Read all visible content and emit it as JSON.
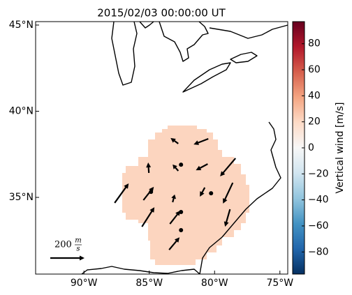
{
  "chart_data": {
    "type": "quiver-map",
    "title": "2015/02/03 00:00:00 UT",
    "xlim": [
      -93.7,
      -74.4
    ],
    "ylim": [
      30.55,
      45.2
    ],
    "xticks": [
      {
        "value": -90,
        "label": "90°W"
      },
      {
        "value": -85,
        "label": "85°W"
      },
      {
        "value": -80,
        "label": "80°W"
      },
      {
        "value": -75,
        "label": "75°W"
      }
    ],
    "yticks": [
      {
        "value": 45,
        "label": "45°N"
      },
      {
        "value": 40,
        "label": "40°N"
      },
      {
        "value": 35,
        "label": "35°N"
      }
    ],
    "field": {
      "value": 18,
      "color": "#fcd5bf"
    },
    "colorbar": {
      "label": "Vertical wind [m/s]",
      "lim": [
        -97,
        97
      ],
      "ticks": [
        80,
        60,
        40,
        20,
        0,
        {
          "value": -20,
          "label": "−20"
        },
        {
          "value": -40,
          "label": "−40"
        },
        {
          "value": -60,
          "label": "−60"
        },
        {
          "value": -80,
          "label": "−80"
        }
      ],
      "colors": [
        "#053061",
        "#2166ac",
        "#4393c3",
        "#92c5de",
        "#d1e5f0",
        "#f7f7f7",
        "#fddbc7",
        "#f4a582",
        "#d6604d",
        "#b2182b",
        "#67001f"
      ]
    },
    "arrows": [
      {
        "lon": -87.65,
        "lat": 34.68,
        "u": 82,
        "v": 114
      },
      {
        "lon": -85.56,
        "lat": 33.3,
        "u": 73,
        "v": 114
      },
      {
        "lon": -85.45,
        "lat": 34.84,
        "u": 61,
        "v": 78
      },
      {
        "lon": -85.03,
        "lat": 36.42,
        "u": -4,
        "v": 61
      },
      {
        "lon": -83.42,
        "lat": 33.46,
        "u": 61,
        "v": 78
      },
      {
        "lon": -83.48,
        "lat": 31.96,
        "u": 61,
        "v": 73
      },
      {
        "lon": -83.21,
        "lat": 34.72,
        "u": 12,
        "v": 45
      },
      {
        "lon": -82.78,
        "lat": 38.12,
        "u": -45,
        "v": 33
      },
      {
        "lon": -82.78,
        "lat": 36.54,
        "u": -33,
        "v": 37
      },
      {
        "lon": -80.48,
        "lat": 38.4,
        "u": -86,
        "v": -33
      },
      {
        "lon": -80.53,
        "lat": 36.94,
        "u": -69,
        "v": -37
      },
      {
        "lon": -78.61,
        "lat": 35.85,
        "u": -57,
        "v": -122
      },
      {
        "lon": -78.4,
        "lat": 37.27,
        "u": -90,
        "v": -106
      },
      {
        "lon": -80.75,
        "lat": 35.57,
        "u": -29,
        "v": -53
      },
      {
        "lon": -78.82,
        "lat": 34.31,
        "u": -29,
        "v": -102
      }
    ],
    "stations": [
      {
        "lon": -82.57,
        "lat": 36.9
      },
      {
        "lon": -84.87,
        "lat": 35.32
      },
      {
        "lon": -80.27,
        "lat": 35.24
      },
      {
        "lon": -82.57,
        "lat": 34.15
      },
      {
        "lon": -82.57,
        "lat": 33.1
      }
    ],
    "key": {
      "value": 200,
      "label": "200",
      "unit_top": "m",
      "unit_bottom": "s"
    }
  }
}
